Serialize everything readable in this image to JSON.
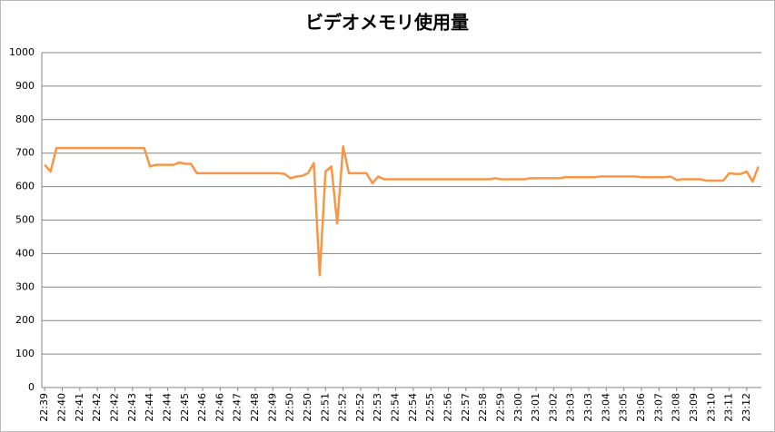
{
  "chart_data": {
    "type": "line",
    "title": "ビデオメモリ使用量",
    "categories": [
      "22:39",
      null,
      null,
      "22:40",
      null,
      null,
      "22:41",
      null,
      null,
      "22:42",
      null,
      null,
      "22:42",
      null,
      null,
      "22:43",
      null,
      null,
      "22:44",
      null,
      null,
      "22:44",
      null,
      null,
      "22:45",
      null,
      null,
      "22:46",
      null,
      null,
      "22:46",
      null,
      null,
      "22:47",
      null,
      null,
      "22:48",
      null,
      null,
      "22:49",
      null,
      null,
      "22:50",
      null,
      null,
      "22:50",
      null,
      null,
      "22:51",
      null,
      null,
      "22:52",
      null,
      null,
      "22:52",
      null,
      null,
      "22:53",
      null,
      null,
      "22:54",
      null,
      null,
      "22:54",
      null,
      null,
      "22:55",
      null,
      null,
      "22:56",
      null,
      null,
      "22:57",
      null,
      null,
      "22:58",
      null,
      null,
      "22:59",
      null,
      null,
      "23:00",
      null,
      null,
      "23:01",
      null,
      null,
      "23:02",
      null,
      null,
      "23:03",
      null,
      null,
      "23:03",
      null,
      null,
      "23:04",
      null,
      null,
      "23:05",
      null,
      null,
      "23:06",
      null,
      null,
      "23:07",
      null,
      null,
      "23:08",
      null,
      null,
      "23:09",
      null,
      null,
      "23:10",
      null,
      null,
      "23:11",
      null,
      null,
      "23:12",
      null,
      null
    ],
    "values": [
      665,
      645,
      715,
      715,
      715,
      715,
      715,
      715,
      715,
      715,
      715,
      715,
      715,
      715,
      715,
      715,
      715,
      715,
      660,
      665,
      665,
      665,
      665,
      672,
      668,
      668,
      640,
      640,
      640,
      640,
      640,
      640,
      640,
      640,
      640,
      640,
      640,
      640,
      640,
      640,
      640,
      638,
      625,
      630,
      632,
      640,
      670,
      335,
      645,
      660,
      490,
      720,
      640,
      640,
      640,
      640,
      610,
      630,
      622,
      622,
      622,
      622,
      622,
      622,
      622,
      622,
      622,
      622,
      622,
      622,
      622,
      622,
      622,
      622,
      622,
      622,
      622,
      625,
      622,
      622,
      622,
      622,
      622,
      625,
      625,
      625,
      625,
      625,
      625,
      628,
      628,
      628,
      628,
      628,
      628,
      630,
      630,
      630,
      630,
      630,
      630,
      630,
      628,
      628,
      628,
      628,
      628,
      630,
      620,
      622,
      622,
      622,
      622,
      618,
      618,
      618,
      618,
      640,
      638,
      638,
      645,
      615,
      660
    ],
    "color": "#f79646",
    "ylim": [
      0,
      1000
    ],
    "yticks": [
      0,
      100,
      200,
      300,
      400,
      500,
      600,
      700,
      800,
      900,
      1000
    ],
    "grid": true
  }
}
